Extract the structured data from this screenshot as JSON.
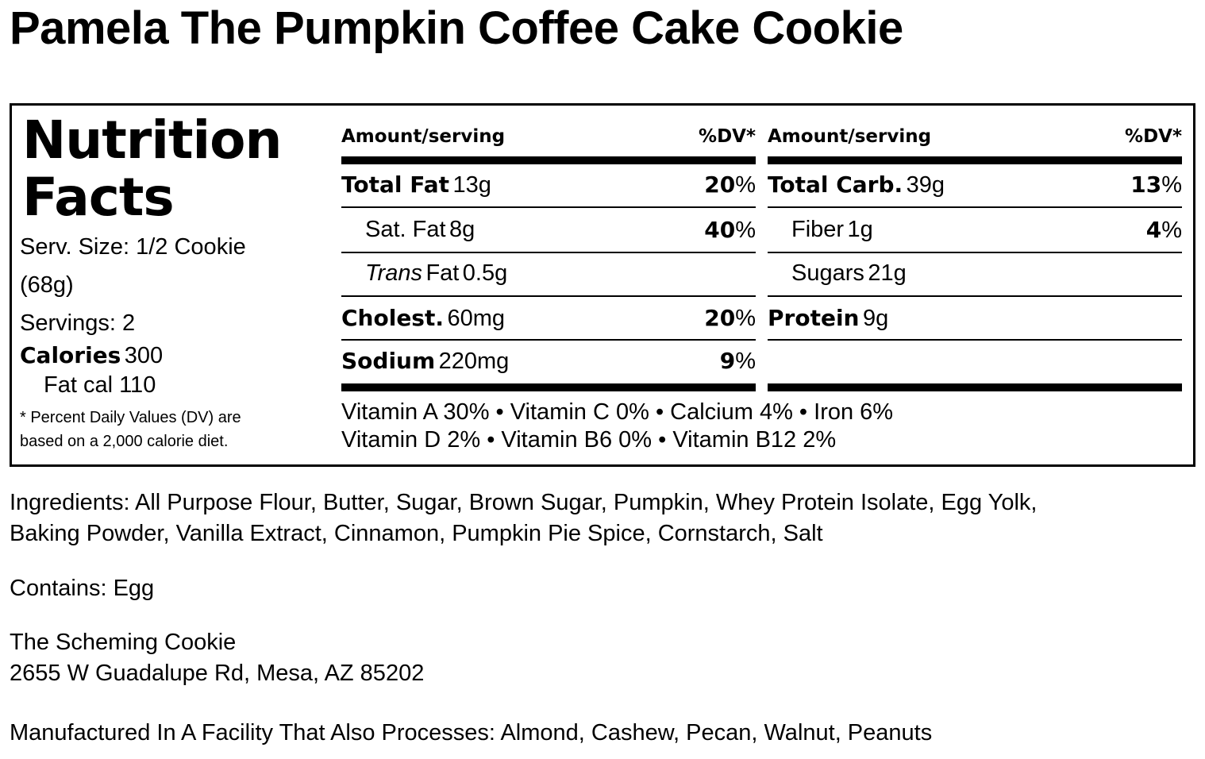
{
  "title": "Pamela The Pumpkin Coffee Cake Cookie",
  "label": {
    "heading_line1": "Nutrition",
    "heading_line2": "Facts",
    "serving_size": "Serv. Size: 1/2 Cookie",
    "serving_size_grams": "(68g)",
    "servings": "Servings: 2",
    "calories_label": "Calories",
    "calories_value": "300",
    "fat_cal": "Fat cal 110",
    "footnote_line1": "* Percent Daily Values (DV) are",
    "footnote_line2": "based on a 2,000 calorie diet.",
    "col_header_amount": "Amount/serving",
    "col_header_dv": "%DV*",
    "left_rows": [
      {
        "name": "Total Fat",
        "amount": "13g",
        "dv": "20",
        "bold": true,
        "indent": false
      },
      {
        "name": "Sat. Fat",
        "amount": "8g",
        "dv": "40",
        "bold": false,
        "indent": true
      },
      {
        "name": "Trans",
        "name_suffix": "Fat",
        "amount": "0.5g",
        "dv": "",
        "bold": false,
        "indent": true
      },
      {
        "name": "Cholest.",
        "amount": "60mg",
        "dv": "20",
        "bold": true,
        "indent": false
      },
      {
        "name": "Sodium",
        "amount": "220mg",
        "dv": "9",
        "bold": true,
        "indent": false
      }
    ],
    "right_rows": [
      {
        "name": "Total Carb.",
        "amount": "39g",
        "dv": "13",
        "bold": true,
        "indent": false
      },
      {
        "name": "Fiber",
        "amount": "1g",
        "dv": "4",
        "bold": false,
        "indent": true
      },
      {
        "name": "Sugars",
        "amount": "21g",
        "dv": "",
        "bold": false,
        "indent": true
      },
      {
        "name": "Protein",
        "amount": "9g",
        "dv": "",
        "bold": true,
        "indent": false
      }
    ],
    "percent_sign": "%",
    "vitamins_line1": "Vitamin A 30% • Vitamin C 0% • Calcium 4% • Iron 6%",
    "vitamins_line2": "Vitamin D 2% • Vitamin B6 0% • Vitamin B12 2%"
  },
  "ingredients_line1": "Ingredients: All Purpose Flour, Butter, Sugar, Brown Sugar, Pumpkin, Whey Protein Isolate, Egg Yolk,",
  "ingredients_line2": "Baking Powder, Vanilla Extract, Cinnamon, Pumpkin Pie Spice, Cornstarch, Salt",
  "contains": "Contains: Egg",
  "company_name": "The Scheming Cookie",
  "company_address": "2655 W Guadalupe Rd, Mesa, AZ 85202",
  "facility_note": "Manufactured In A Facility That Also Processes: Almond, Cashew, Pecan, Walnut, Peanuts"
}
